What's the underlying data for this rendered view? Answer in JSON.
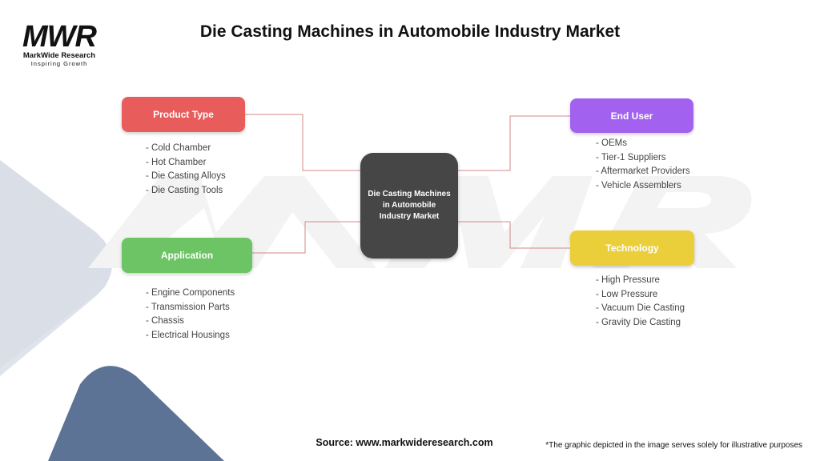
{
  "header": {
    "title": "Die Casting Machines in Automobile Industry Market"
  },
  "logo": {
    "mark": "MWR",
    "name": "MarkWide Research",
    "tagline": "Inspiring Growth"
  },
  "center": {
    "label": "Die Casting Machines in Automobile Industry Market"
  },
  "categories": [
    {
      "label": "Product Type",
      "color": "#e85c5c",
      "items": [
        "- Cold Chamber",
        "- Hot Chamber",
        "- Die Casting Alloys",
        "- Die Casting Tools"
      ]
    },
    {
      "label": "Application",
      "color": "#6cc464",
      "items": [
        "- Engine Components",
        "- Transmission Parts",
        "- Chassis",
        "- Electrical Housings"
      ]
    },
    {
      "label": "End User",
      "color": "#a361ef",
      "items": [
        "- OEMs",
        "- Tier-1 Suppliers",
        "- Aftermarket Providers",
        "- Vehicle Assemblers"
      ]
    },
    {
      "label": "Technology",
      "color": "#ebcf3a",
      "items": [
        "- High Pressure",
        "- Low Pressure",
        "- Vacuum Die Casting",
        "- Gravity Die Casting"
      ]
    }
  ],
  "footer": {
    "source": "Source: www.markwideresearch.com",
    "disclaimer": "*The graphic depicted in the image serves solely for illustrative purposes"
  }
}
